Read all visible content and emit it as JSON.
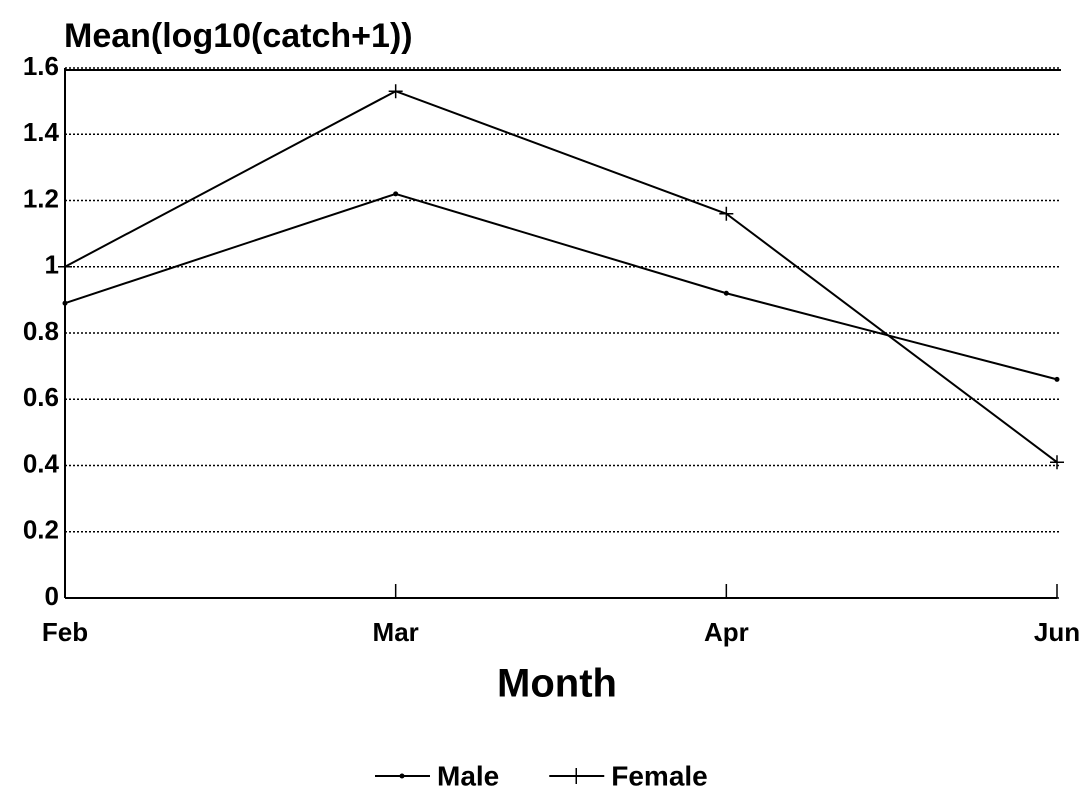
{
  "chart_data": {
    "type": "line",
    "ylabel": "Mean(log10(catch+1))",
    "xlabel": "Month",
    "categories": [
      "Feb",
      "Mar",
      "Apr",
      "Jun"
    ],
    "series": [
      {
        "name": "Male",
        "color": "#000000",
        "marker": "dot",
        "values": [
          0.89,
          1.22,
          0.92,
          0.66
        ]
      },
      {
        "name": "Female",
        "color": "#000000",
        "marker": "plus",
        "values": [
          1.0,
          1.53,
          1.16,
          0.41
        ]
      }
    ],
    "ylim": [
      0,
      1.6
    ],
    "yticks": [
      0,
      0.2,
      0.4,
      0.6,
      0.8,
      1,
      1.2,
      1.4,
      1.6
    ],
    "grid": true,
    "legend": "bottom"
  }
}
